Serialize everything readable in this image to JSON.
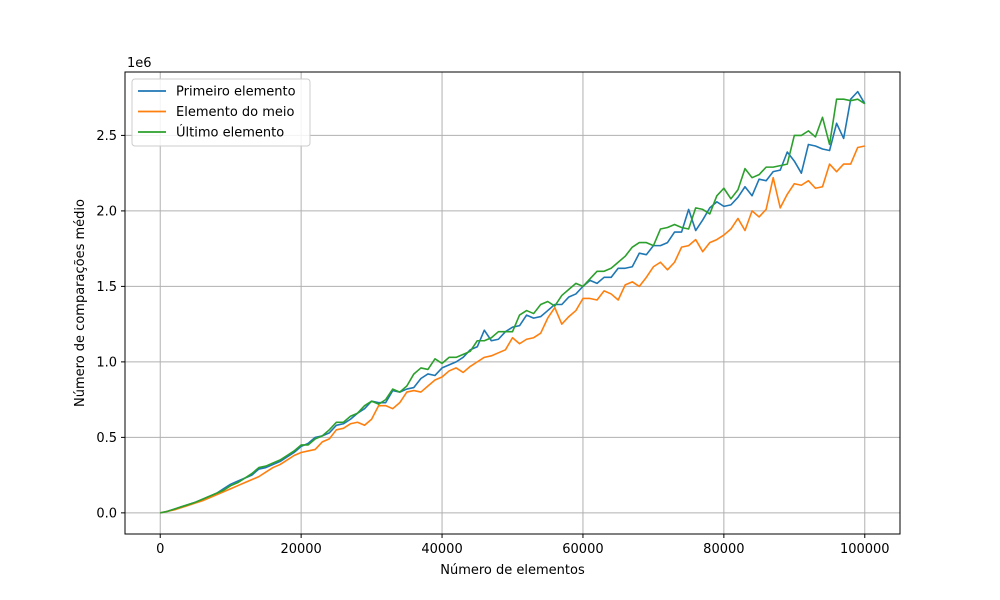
{
  "chart_data": {
    "type": "line",
    "xlabel": "Número de elementos",
    "ylabel": "Número de comparações médio",
    "y_offset_text": "1e6",
    "xlim": [
      -5000,
      105000
    ],
    "ylim": [
      -0.14,
      2.92
    ],
    "x_ticks": [
      0,
      20000,
      40000,
      60000,
      80000,
      100000
    ],
    "x_tick_labels": [
      "0",
      "20000",
      "40000",
      "60000",
      "80000",
      "100000"
    ],
    "y_ticks": [
      0.0,
      0.5,
      1.0,
      1.5,
      2.0,
      2.5
    ],
    "y_tick_labels": [
      "0.0",
      "0.5",
      "1.0",
      "1.5",
      "2.0",
      "2.5"
    ],
    "grid": true,
    "legend_position": "upper-left",
    "x": [
      0,
      1000,
      2000,
      3000,
      4000,
      5000,
      6000,
      7000,
      8000,
      9000,
      10000,
      11000,
      12000,
      13000,
      14000,
      15000,
      16000,
      17000,
      18000,
      19000,
      20000,
      21000,
      22000,
      23000,
      24000,
      25000,
      26000,
      27000,
      28000,
      29000,
      30000,
      31000,
      32000,
      33000,
      34000,
      35000,
      36000,
      37000,
      38000,
      39000,
      40000,
      41000,
      42000,
      43000,
      44000,
      45000,
      46000,
      47000,
      48000,
      49000,
      50000,
      51000,
      52000,
      53000,
      54000,
      55000,
      56000,
      57000,
      58000,
      59000,
      60000,
      61000,
      62000,
      63000,
      64000,
      65000,
      66000,
      67000,
      68000,
      69000,
      70000,
      71000,
      72000,
      73000,
      74000,
      75000,
      76000,
      77000,
      78000,
      79000,
      80000,
      81000,
      82000,
      83000,
      84000,
      85000,
      86000,
      87000,
      88000,
      89000,
      90000,
      91000,
      92000,
      93000,
      94000,
      95000,
      96000,
      97000,
      98000,
      99000,
      100000
    ],
    "series": [
      {
        "name": "Primeiro elemento",
        "color": "#1f77b4",
        "values": [
          0.0,
          0.01,
          0.025,
          0.04,
          0.055,
          0.07,
          0.09,
          0.11,
          0.13,
          0.16,
          0.19,
          0.21,
          0.23,
          0.25,
          0.29,
          0.3,
          0.32,
          0.34,
          0.37,
          0.4,
          0.44,
          0.46,
          0.5,
          0.51,
          0.53,
          0.58,
          0.59,
          0.62,
          0.66,
          0.69,
          0.74,
          0.73,
          0.73,
          0.81,
          0.8,
          0.82,
          0.83,
          0.89,
          0.92,
          0.91,
          0.96,
          0.98,
          1.0,
          1.03,
          1.08,
          1.1,
          1.21,
          1.14,
          1.15,
          1.2,
          1.23,
          1.24,
          1.31,
          1.29,
          1.3,
          1.34,
          1.38,
          1.38,
          1.43,
          1.45,
          1.5,
          1.54,
          1.52,
          1.56,
          1.56,
          1.62,
          1.62,
          1.63,
          1.72,
          1.71,
          1.77,
          1.77,
          1.79,
          1.86,
          1.86,
          2.01,
          1.87,
          1.94,
          2.02,
          2.06,
          2.03,
          2.04,
          2.09,
          2.16,
          2.1,
          2.21,
          2.2,
          2.26,
          2.27,
          2.39,
          2.33,
          2.25,
          2.44,
          2.43,
          2.41,
          2.4,
          2.58,
          2.48,
          2.74,
          2.79,
          2.71
        ]
      },
      {
        "name": "Elemento do meio",
        "color": "#ff7f0e",
        "values": [
          0.0,
          0.01,
          0.02,
          0.035,
          0.05,
          0.065,
          0.08,
          0.1,
          0.12,
          0.14,
          0.16,
          0.18,
          0.2,
          0.22,
          0.24,
          0.27,
          0.3,
          0.32,
          0.35,
          0.38,
          0.4,
          0.41,
          0.42,
          0.47,
          0.49,
          0.55,
          0.56,
          0.59,
          0.6,
          0.58,
          0.62,
          0.71,
          0.71,
          0.69,
          0.73,
          0.8,
          0.81,
          0.8,
          0.84,
          0.88,
          0.9,
          0.94,
          0.96,
          0.93,
          0.97,
          1.0,
          1.03,
          1.04,
          1.06,
          1.08,
          1.16,
          1.12,
          1.15,
          1.16,
          1.19,
          1.29,
          1.36,
          1.25,
          1.3,
          1.34,
          1.42,
          1.42,
          1.41,
          1.47,
          1.45,
          1.41,
          1.51,
          1.53,
          1.5,
          1.56,
          1.63,
          1.66,
          1.61,
          1.66,
          1.76,
          1.77,
          1.81,
          1.73,
          1.79,
          1.81,
          1.84,
          1.88,
          1.95,
          1.87,
          2.0,
          1.96,
          2.01,
          2.22,
          2.02,
          2.11,
          2.18,
          2.17,
          2.2,
          2.15,
          2.16,
          2.31,
          2.26,
          2.31,
          2.31,
          2.42,
          2.43
        ]
      },
      {
        "name": "Último elemento",
        "color": "#2ca02c",
        "values": [
          0.0,
          0.01,
          0.025,
          0.04,
          0.055,
          0.07,
          0.09,
          0.11,
          0.13,
          0.15,
          0.18,
          0.2,
          0.23,
          0.26,
          0.3,
          0.31,
          0.33,
          0.35,
          0.38,
          0.41,
          0.45,
          0.45,
          0.49,
          0.51,
          0.55,
          0.6,
          0.6,
          0.64,
          0.66,
          0.71,
          0.74,
          0.72,
          0.75,
          0.82,
          0.8,
          0.84,
          0.92,
          0.96,
          0.95,
          1.02,
          0.99,
          1.03,
          1.03,
          1.05,
          1.07,
          1.14,
          1.14,
          1.16,
          1.2,
          1.2,
          1.2,
          1.31,
          1.34,
          1.32,
          1.38,
          1.4,
          1.37,
          1.44,
          1.48,
          1.52,
          1.5,
          1.55,
          1.6,
          1.6,
          1.62,
          1.66,
          1.7,
          1.76,
          1.79,
          1.79,
          1.77,
          1.88,
          1.89,
          1.91,
          1.89,
          1.88,
          2.02,
          2.01,
          1.98,
          2.1,
          2.15,
          2.08,
          2.14,
          2.28,
          2.22,
          2.24,
          2.29,
          2.29,
          2.3,
          2.31,
          2.5,
          2.5,
          2.53,
          2.49,
          2.62,
          2.44,
          2.74,
          2.74,
          2.73,
          2.74,
          2.71
        ]
      }
    ]
  }
}
